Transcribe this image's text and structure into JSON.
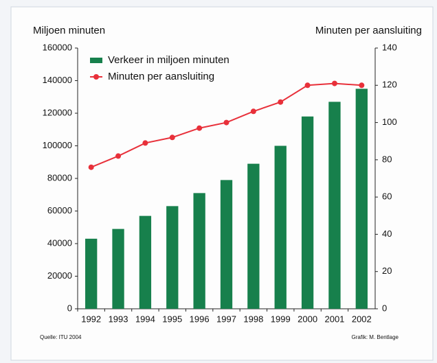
{
  "chart_data": {
    "type": "bar",
    "ylabel": "Miljoen minuten",
    "y2label": "Minuten per aansluiting",
    "categories": [
      "1992",
      "1993",
      "1994",
      "1995",
      "1996",
      "1997",
      "1998",
      "1999",
      "2000",
      "2001",
      "2002"
    ],
    "series": [
      {
        "name": "Verkeer in miljoen minuten",
        "type": "bar",
        "color": "#17804c",
        "axis": "y",
        "values": [
          43000,
          49000,
          57000,
          63000,
          71000,
          79000,
          89000,
          100000,
          118000,
          127000,
          135000
        ]
      },
      {
        "name": "Minuten per aansluiting",
        "type": "line",
        "color": "#e8303a",
        "axis": "y2",
        "values": [
          76,
          82,
          89,
          92,
          97,
          100,
          106,
          111,
          120,
          121,
          120
        ]
      }
    ],
    "ylim": [
      0,
      160000
    ],
    "yticks": [
      0,
      20000,
      40000,
      60000,
      80000,
      100000,
      120000,
      140000,
      160000
    ],
    "y2lim": [
      0,
      140
    ],
    "y2ticks": [
      0,
      20,
      40,
      60,
      80,
      100,
      120,
      140
    ],
    "grid": false,
    "legend": "top-left",
    "source": "Quelle: ITU 2004",
    "credit": "Grafik: M. Bentlage"
  }
}
